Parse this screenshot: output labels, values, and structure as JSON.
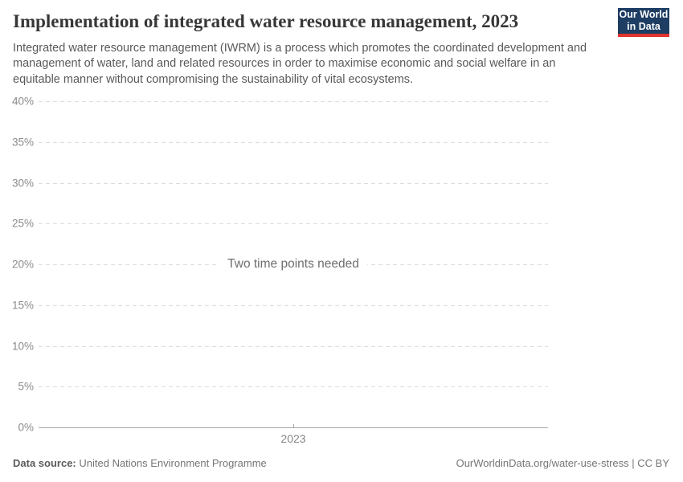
{
  "header": {
    "title": "Implementation of integrated water resource management, 2023",
    "subtitle": "Integrated water resource management (IWRM) is a process which promotes the coordinated development and management of water, land and related resources in order to maximise economic and social welfare in an equitable manner without compromising the sustainability of vital ecosystems.",
    "logo": {
      "line1": "Our World",
      "line2": "in Data"
    }
  },
  "chart_data": {
    "type": "line",
    "title": "Implementation of integrated water resource management, 2023",
    "x": [
      2023
    ],
    "series": [],
    "values": [],
    "message": "Two time points needed",
    "xlabel": "",
    "ylabel": "",
    "ylim": [
      0,
      40
    ],
    "y_ticks": [
      {
        "value": 0,
        "label": "0%"
      },
      {
        "value": 5,
        "label": "5%"
      },
      {
        "value": 10,
        "label": "10%"
      },
      {
        "value": 15,
        "label": "15%"
      },
      {
        "value": 20,
        "label": "20%"
      },
      {
        "value": 25,
        "label": "25%"
      },
      {
        "value": 30,
        "label": "30%"
      },
      {
        "value": 35,
        "label": "35%"
      },
      {
        "value": 40,
        "label": "40%"
      }
    ],
    "x_ticks": [
      {
        "value": 2023,
        "label": "2023"
      }
    ],
    "grid": "horizontal-dashed",
    "legend_position": "none"
  },
  "footer": {
    "datasource_label": "Data source:",
    "datasource_value": "United Nations Environment Programme",
    "attribution_link": "OurWorldinData.org/water-use-stress",
    "attribution_license": "| CC BY"
  },
  "colors": {
    "logo_background": "#1d3d63",
    "logo_accent_red": "#e0342c",
    "title_text": "#383636",
    "subtitle_text": "#595959",
    "axis_label_text": "#8a8a8a",
    "gridline": "#dddddd",
    "axis_line": "#a5a5a5",
    "message_text": "#6e6e6e",
    "footer_text": "#757575",
    "background": "#ffffff"
  }
}
